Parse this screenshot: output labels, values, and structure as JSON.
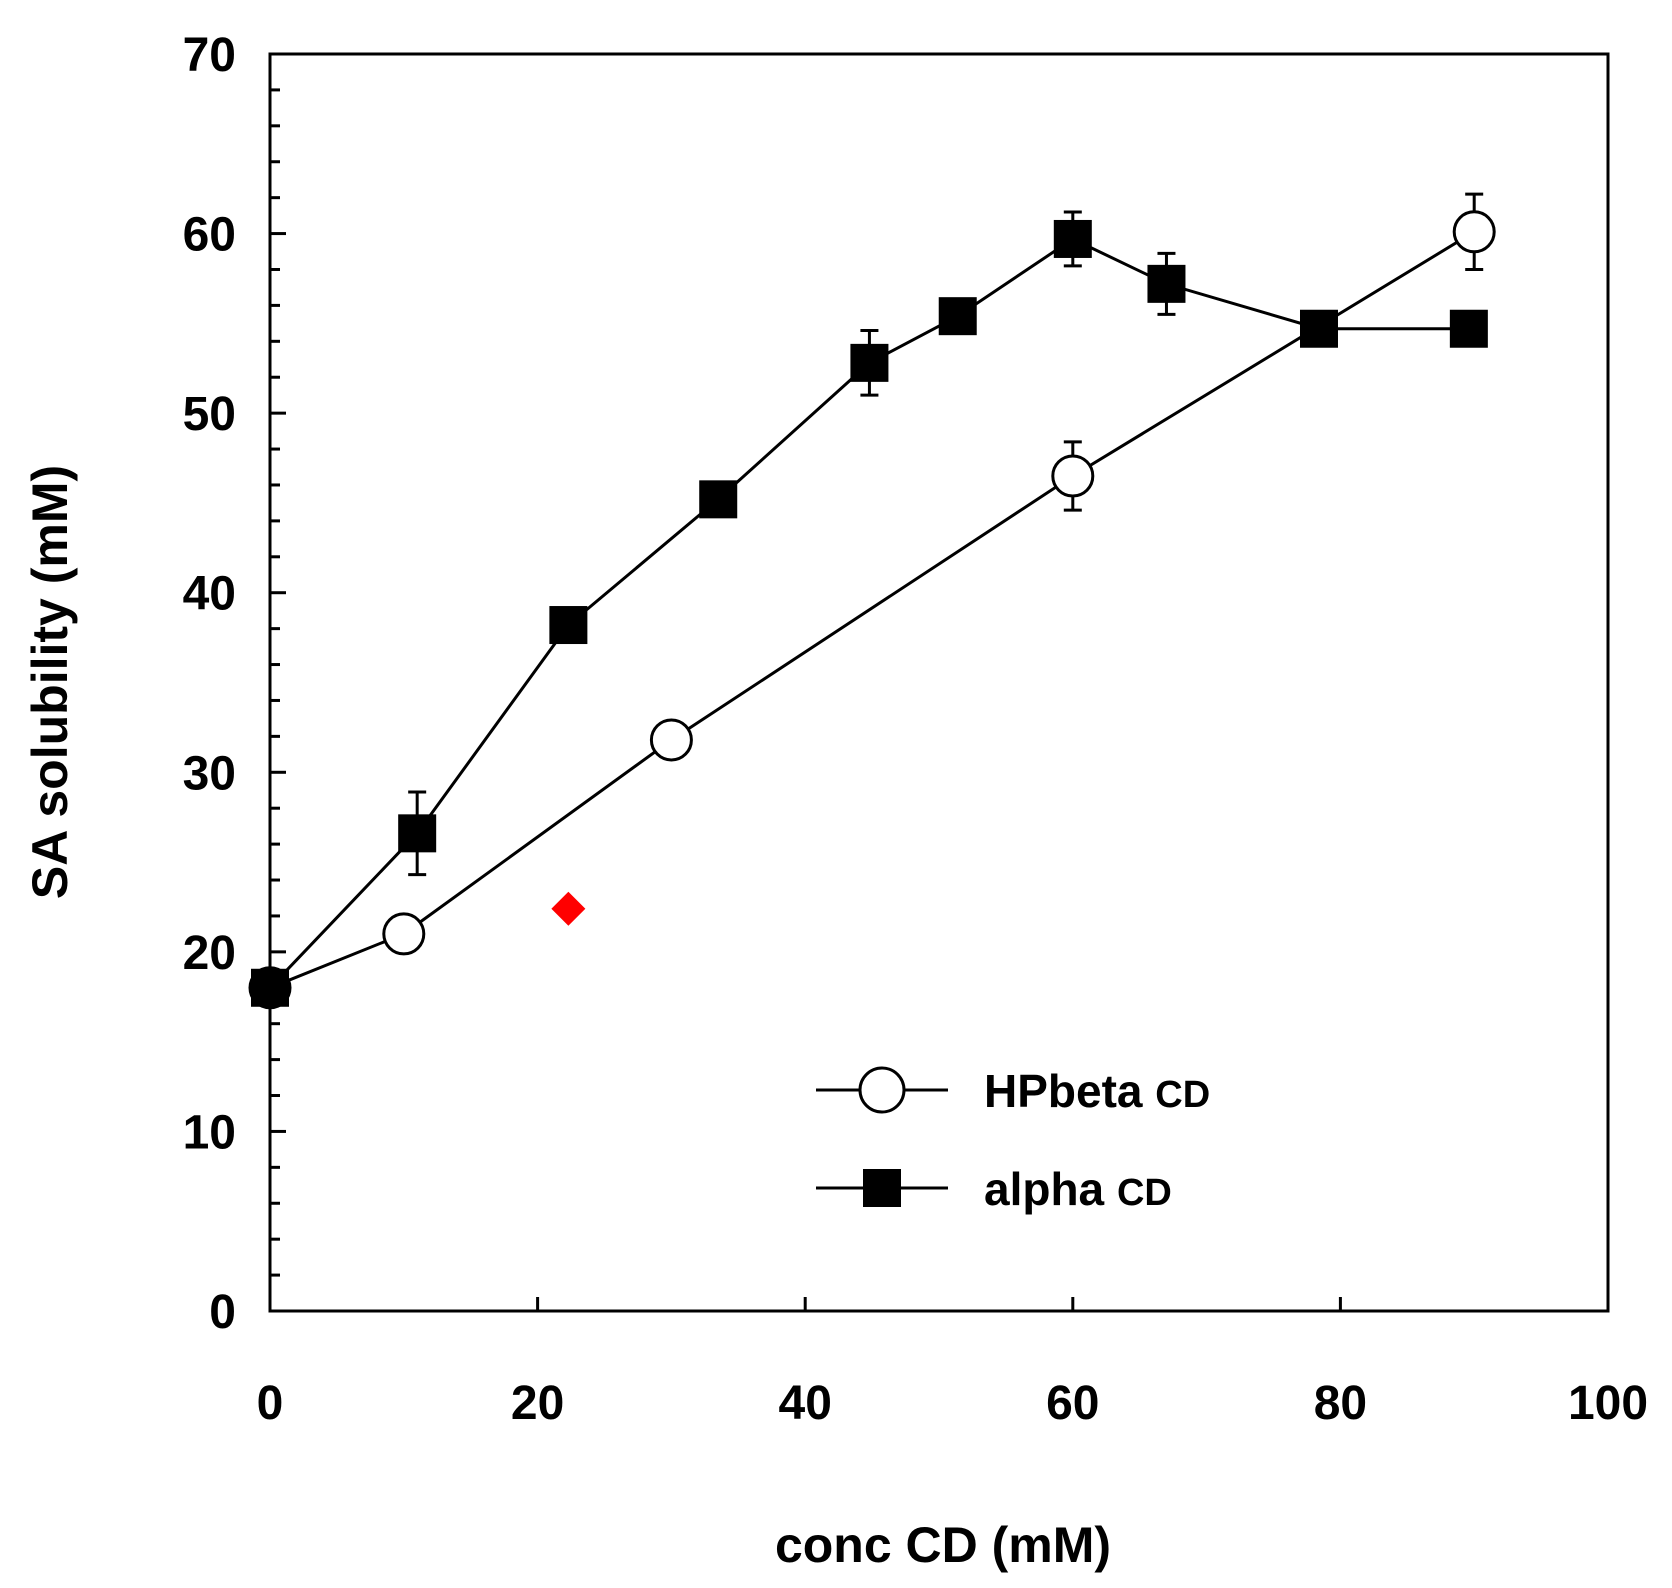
{
  "chart_data": {
    "type": "line",
    "title": "",
    "xlabel": "conc CD (mM)",
    "ylabel": "SA solubility (mM)",
    "xlim": [
      0,
      100
    ],
    "ylim": [
      0,
      70
    ],
    "x_major_ticks": [
      0,
      20,
      40,
      60,
      80,
      100
    ],
    "y_major_ticks": [
      0,
      10,
      20,
      30,
      40,
      50,
      60,
      70
    ],
    "y_minor_step": 2,
    "grid": false,
    "legend_position": "bottom-right",
    "series": [
      {
        "name": "HPbeta",
        "name_suffix": "CD",
        "marker": "open-circle",
        "x": [
          0,
          10,
          30,
          60,
          90
        ],
        "y": [
          18,
          21,
          31.8,
          46.5,
          60.1
        ],
        "err": [
          0,
          0,
          0,
          1.9,
          2.1
        ]
      },
      {
        "name": "alpha",
        "name_suffix": "CD",
        "marker": "filled-square",
        "x": [
          0,
          11,
          22.3,
          33.5,
          44.8,
          51.4,
          60,
          67,
          78.4,
          89.6
        ],
        "y": [
          18,
          26.6,
          38.2,
          45.2,
          52.8,
          55.4,
          59.7,
          57.2,
          54.7,
          54.7
        ],
        "err": [
          0,
          2.3,
          0,
          0,
          1.8,
          0,
          1.5,
          1.7,
          0,
          0
        ]
      }
    ],
    "annotations": [
      {
        "type": "point",
        "marker": "diamond",
        "color": "#ff0000",
        "x": 22.3,
        "y": 22.4
      }
    ]
  }
}
